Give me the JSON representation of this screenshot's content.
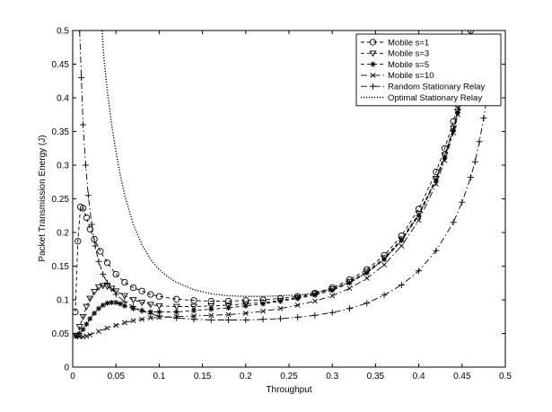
{
  "chart_data": {
    "type": "line",
    "title": "",
    "xlabel": "Throughput",
    "ylabel": "Packet Transmission Energy (J)",
    "xlim": [
      0,
      0.5
    ],
    "ylim": [
      0,
      0.5
    ],
    "xticks": [
      "0",
      "0.05",
      "0.1",
      "0.15",
      "0.2",
      "0.25",
      "0.3",
      "0.35",
      "0.4",
      "0.45",
      "0.5"
    ],
    "yticks": [
      "0",
      "0.05",
      "0.1",
      "0.15",
      "0.2",
      "0.25",
      "0.3",
      "0.35",
      "0.4",
      "0.45",
      "0.5"
    ],
    "grid": false,
    "legend_position": "top-right",
    "series": [
      {
        "name": "Mobile s=1",
        "marker": "circle",
        "dash": "dashed",
        "x": [
          0.003,
          0.006,
          0.009,
          0.012,
          0.016,
          0.02,
          0.025,
          0.032,
          0.04,
          0.05,
          0.06,
          0.07,
          0.08,
          0.09,
          0.1,
          0.12,
          0.14,
          0.16,
          0.18,
          0.2,
          0.22,
          0.24,
          0.26,
          0.28,
          0.3,
          0.32,
          0.34,
          0.36,
          0.38,
          0.4,
          0.42,
          0.43,
          0.44,
          0.445,
          0.45,
          0.455,
          0.46
        ],
        "y": [
          0.082,
          0.187,
          0.238,
          0.236,
          0.222,
          0.205,
          0.19,
          0.172,
          0.155,
          0.138,
          0.126,
          0.118,
          0.113,
          0.108,
          0.105,
          0.101,
          0.099,
          0.098,
          0.098,
          0.099,
          0.1,
          0.102,
          0.105,
          0.11,
          0.118,
          0.13,
          0.145,
          0.166,
          0.195,
          0.235,
          0.29,
          0.325,
          0.365,
          0.39,
          0.42,
          0.455,
          0.5
        ]
      },
      {
        "name": "Mobile s=3",
        "marker": "triangle-down",
        "dash": "dashed",
        "x": [
          0.004,
          0.008,
          0.012,
          0.016,
          0.02,
          0.025,
          0.03,
          0.035,
          0.04,
          0.045,
          0.05,
          0.06,
          0.07,
          0.08,
          0.09,
          0.1,
          0.12,
          0.14,
          0.16,
          0.18,
          0.2,
          0.22,
          0.24,
          0.26,
          0.28,
          0.3,
          0.32,
          0.34,
          0.36,
          0.38,
          0.4,
          0.42,
          0.43,
          0.44,
          0.445,
          0.45,
          0.455,
          0.46
        ],
        "y": [
          0.047,
          0.06,
          0.075,
          0.09,
          0.102,
          0.112,
          0.119,
          0.121,
          0.12,
          0.117,
          0.113,
          0.106,
          0.1,
          0.096,
          0.093,
          0.091,
          0.09,
          0.09,
          0.091,
          0.092,
          0.094,
          0.096,
          0.099,
          0.103,
          0.109,
          0.116,
          0.127,
          0.142,
          0.162,
          0.19,
          0.228,
          0.28,
          0.315,
          0.355,
          0.38,
          0.41,
          0.445,
          0.49
        ]
      },
      {
        "name": "Mobile s=5",
        "marker": "star",
        "dash": "dashed",
        "x": [
          0.004,
          0.008,
          0.012,
          0.016,
          0.02,
          0.025,
          0.03,
          0.035,
          0.04,
          0.045,
          0.05,
          0.055,
          0.06,
          0.07,
          0.08,
          0.09,
          0.1,
          0.12,
          0.14,
          0.16,
          0.18,
          0.2,
          0.22,
          0.24,
          0.26,
          0.28,
          0.3,
          0.32,
          0.34,
          0.36,
          0.38,
          0.4,
          0.42,
          0.43,
          0.44,
          0.445,
          0.45,
          0.455,
          0.46
        ],
        "y": [
          0.046,
          0.05,
          0.056,
          0.064,
          0.072,
          0.08,
          0.087,
          0.092,
          0.095,
          0.096,
          0.096,
          0.094,
          0.091,
          0.087,
          0.084,
          0.082,
          0.082,
          0.082,
          0.084,
          0.086,
          0.088,
          0.091,
          0.094,
          0.098,
          0.102,
          0.107,
          0.114,
          0.125,
          0.14,
          0.16,
          0.188,
          0.225,
          0.278,
          0.312,
          0.352,
          0.378,
          0.408,
          0.443,
          0.488
        ]
      },
      {
        "name": "Mobile s=10",
        "marker": "x",
        "dash": "dashdot",
        "x": [
          0.004,
          0.008,
          0.012,
          0.016,
          0.02,
          0.03,
          0.04,
          0.05,
          0.06,
          0.07,
          0.08,
          0.09,
          0.1,
          0.12,
          0.14,
          0.16,
          0.18,
          0.2,
          0.22,
          0.24,
          0.26,
          0.28,
          0.3,
          0.32,
          0.34,
          0.36,
          0.38,
          0.4,
          0.42,
          0.43,
          0.44,
          0.445,
          0.45,
          0.455,
          0.46
        ],
        "y": [
          0.046,
          0.045,
          0.045,
          0.046,
          0.048,
          0.053,
          0.058,
          0.062,
          0.066,
          0.069,
          0.071,
          0.073,
          0.074,
          0.075,
          0.076,
          0.077,
          0.078,
          0.08,
          0.083,
          0.087,
          0.092,
          0.098,
          0.106,
          0.117,
          0.132,
          0.152,
          0.18,
          0.218,
          0.272,
          0.307,
          0.348,
          0.375,
          0.405,
          0.44,
          0.485
        ]
      },
      {
        "name": "Random Stationary Relay",
        "marker": "plus",
        "dash": "dashdot",
        "x": [
          0.008,
          0.01,
          0.012,
          0.015,
          0.018,
          0.022,
          0.026,
          0.03,
          0.035,
          0.04,
          0.05,
          0.06,
          0.07,
          0.08,
          0.09,
          0.1,
          0.12,
          0.14,
          0.16,
          0.18,
          0.2,
          0.22,
          0.24,
          0.26,
          0.28,
          0.3,
          0.32,
          0.34,
          0.36,
          0.38,
          0.4,
          0.42,
          0.44,
          0.45,
          0.46,
          0.465,
          0.47,
          0.475,
          0.48
        ],
        "y": [
          0.5,
          0.43,
          0.36,
          0.3,
          0.255,
          0.212,
          0.18,
          0.157,
          0.138,
          0.125,
          0.108,
          0.097,
          0.09,
          0.084,
          0.079,
          0.076,
          0.073,
          0.071,
          0.07,
          0.07,
          0.07,
          0.071,
          0.072,
          0.074,
          0.077,
          0.081,
          0.087,
          0.095,
          0.107,
          0.122,
          0.143,
          0.173,
          0.215,
          0.245,
          0.282,
          0.305,
          0.335,
          0.37,
          0.41
        ]
      },
      {
        "name": "Optimal Stationary Relay",
        "marker": "none",
        "dash": "dotted",
        "x": [
          0.034,
          0.036,
          0.04,
          0.045,
          0.05,
          0.055,
          0.06,
          0.07,
          0.08,
          0.09,
          0.1,
          0.11,
          0.12,
          0.14,
          0.16,
          0.18,
          0.2,
          0.22,
          0.24,
          0.26,
          0.28,
          0.3,
          0.32,
          0.34,
          0.36,
          0.38,
          0.4,
          0.42,
          0.43,
          0.44,
          0.445,
          0.45,
          0.455,
          0.46
        ],
        "y": [
          0.5,
          0.46,
          0.41,
          0.36,
          0.32,
          0.285,
          0.256,
          0.212,
          0.182,
          0.16,
          0.145,
          0.134,
          0.126,
          0.115,
          0.109,
          0.106,
          0.105,
          0.105,
          0.106,
          0.107,
          0.11,
          0.116,
          0.126,
          0.14,
          0.16,
          0.188,
          0.226,
          0.279,
          0.314,
          0.354,
          0.38,
          0.41,
          0.445,
          0.49
        ]
      }
    ]
  }
}
